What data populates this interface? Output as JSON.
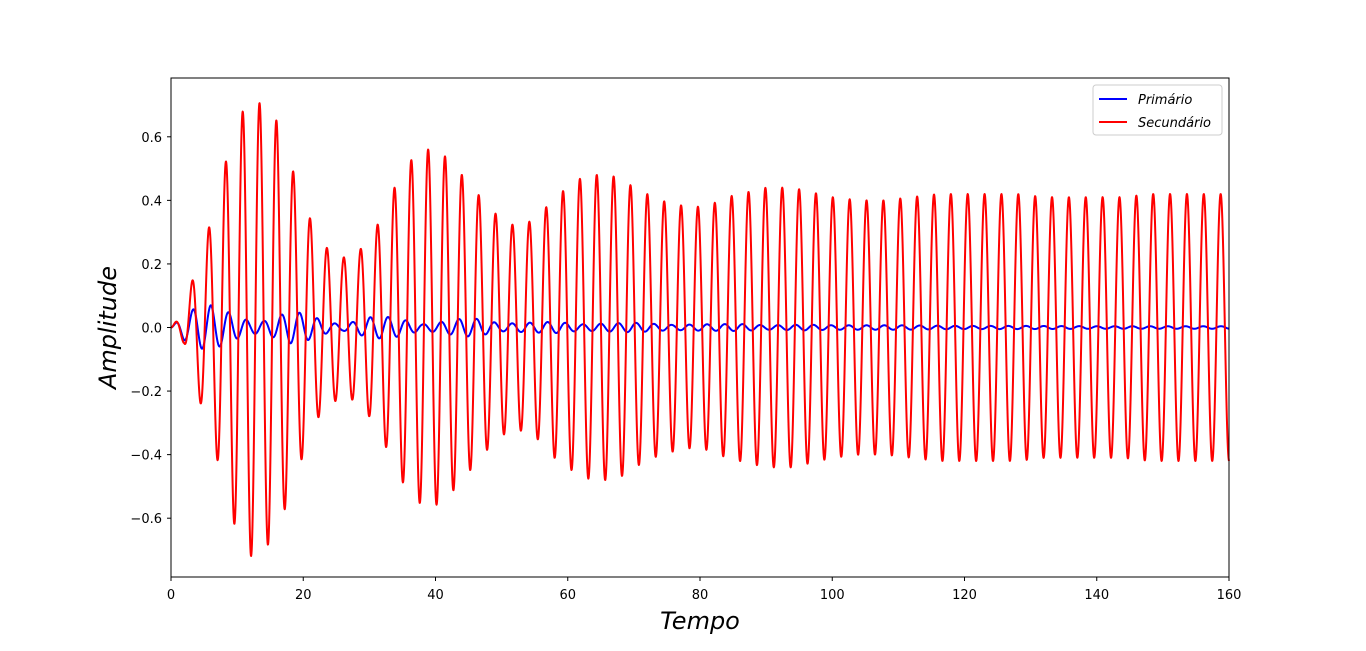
{
  "chart_data": {
    "type": "line",
    "title": "",
    "xlabel": "Tempo",
    "ylabel": "Amplitude",
    "xlim": [
      0,
      160
    ],
    "ylim": [
      -0.785,
      0.785
    ],
    "xticks": [
      0,
      20,
      40,
      60,
      80,
      100,
      120,
      140,
      160
    ],
    "xtick_labels": [
      "0",
      "20",
      "40",
      "60",
      "80",
      "100",
      "120",
      "140",
      "160"
    ],
    "yticks": [
      -0.6,
      -0.4,
      -0.2,
      0.0,
      0.2,
      0.4,
      0.6
    ],
    "ytick_labels": [
      "−0.6",
      "−0.4",
      "−0.2",
      "0.0",
      "0.2",
      "0.4",
      "0.6"
    ],
    "grid": false,
    "legend_position": "top-right",
    "series": [
      {
        "name": "Primário",
        "color": "#0000ff",
        "period": 2.68,
        "envelope": [
          [
            0,
            0.0
          ],
          [
            2,
            0.04
          ],
          [
            4,
            0.065
          ],
          [
            6,
            0.07
          ],
          [
            8,
            0.055
          ],
          [
            10,
            0.035
          ],
          [
            12,
            0.02
          ],
          [
            14,
            0.02
          ],
          [
            16,
            0.035
          ],
          [
            18,
            0.05
          ],
          [
            20,
            0.045
          ],
          [
            22,
            0.03
          ],
          [
            24,
            0.015
          ],
          [
            26,
            0.01
          ],
          [
            28,
            0.02
          ],
          [
            30,
            0.032
          ],
          [
            32,
            0.035
          ],
          [
            34,
            0.03
          ],
          [
            36,
            0.02
          ],
          [
            38,
            0.01
          ],
          [
            40,
            0.015
          ],
          [
            44,
            0.028
          ],
          [
            46,
            0.028
          ],
          [
            50,
            0.012
          ],
          [
            54,
            0.015
          ],
          [
            58,
            0.018
          ],
          [
            62,
            0.01
          ],
          [
            66,
            0.013
          ],
          [
            70,
            0.015
          ],
          [
            76,
            0.008
          ],
          [
            80,
            0.01
          ],
          [
            86,
            0.011
          ],
          [
            90,
            0.007
          ],
          [
            96,
            0.009
          ],
          [
            100,
            0.007
          ],
          [
            110,
            0.007
          ],
          [
            120,
            0.005
          ],
          [
            130,
            0.005
          ],
          [
            140,
            0.004
          ],
          [
            150,
            0.004
          ],
          [
            160,
            0.004
          ]
        ]
      },
      {
        "name": "Secundário",
        "color": "#ff0000",
        "period": 2.55,
        "envelope": [
          [
            0,
            0.0
          ],
          [
            2,
            0.05
          ],
          [
            4,
            0.21
          ],
          [
            6,
            0.33
          ],
          [
            8,
            0.5
          ],
          [
            10,
            0.65
          ],
          [
            12,
            0.72
          ],
          [
            14,
            0.7
          ],
          [
            16,
            0.65
          ],
          [
            18,
            0.52
          ],
          [
            20,
            0.4
          ],
          [
            22,
            0.29
          ],
          [
            24,
            0.24
          ],
          [
            26,
            0.22
          ],
          [
            28,
            0.23
          ],
          [
            30,
            0.28
          ],
          [
            32,
            0.35
          ],
          [
            34,
            0.45
          ],
          [
            36,
            0.52
          ],
          [
            38,
            0.56
          ],
          [
            40,
            0.56
          ],
          [
            42,
            0.53
          ],
          [
            44,
            0.48
          ],
          [
            46,
            0.43
          ],
          [
            48,
            0.38
          ],
          [
            50,
            0.34
          ],
          [
            52,
            0.32
          ],
          [
            54,
            0.33
          ],
          [
            56,
            0.36
          ],
          [
            58,
            0.41
          ],
          [
            60,
            0.44
          ],
          [
            62,
            0.47
          ],
          [
            64,
            0.48
          ],
          [
            66,
            0.48
          ],
          [
            68,
            0.47
          ],
          [
            70,
            0.44
          ],
          [
            72,
            0.42
          ],
          [
            74,
            0.4
          ],
          [
            76,
            0.39
          ],
          [
            78,
            0.38
          ],
          [
            80,
            0.38
          ],
          [
            82,
            0.39
          ],
          [
            84,
            0.41
          ],
          [
            86,
            0.42
          ],
          [
            88,
            0.43
          ],
          [
            90,
            0.44
          ],
          [
            92,
            0.44
          ],
          [
            94,
            0.44
          ],
          [
            96,
            0.43
          ],
          [
            98,
            0.42
          ],
          [
            100,
            0.41
          ],
          [
            104,
            0.4
          ],
          [
            108,
            0.4
          ],
          [
            112,
            0.41
          ],
          [
            116,
            0.42
          ],
          [
            120,
            0.42
          ],
          [
            124,
            0.42
          ],
          [
            128,
            0.42
          ],
          [
            132,
            0.41
          ],
          [
            136,
            0.41
          ],
          [
            140,
            0.41
          ],
          [
            144,
            0.41
          ],
          [
            148,
            0.42
          ],
          [
            152,
            0.42
          ],
          [
            156,
            0.42
          ],
          [
            160,
            0.42
          ]
        ]
      }
    ]
  }
}
